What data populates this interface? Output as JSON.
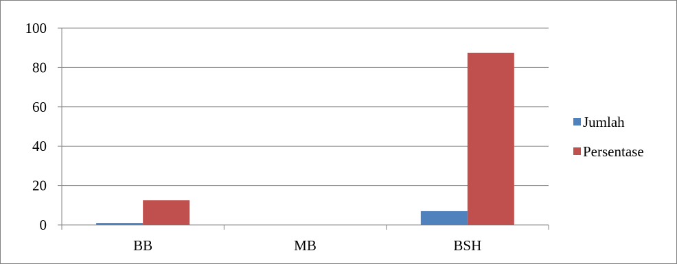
{
  "chart_data": {
    "type": "bar",
    "title": "",
    "xlabel": "",
    "ylabel": "",
    "categories": [
      "BB",
      "MB",
      "BSH"
    ],
    "series": [
      {
        "name": "Jumlah",
        "values": [
          1,
          0,
          7
        ],
        "color": "#4F81BD"
      },
      {
        "name": "Persentase",
        "values": [
          12.5,
          0,
          87.5
        ],
        "color": "#C0504D"
      }
    ],
    "ylim": [
      0,
      100
    ],
    "yticks": [
      "0",
      "20",
      "40",
      "60",
      "80",
      "100"
    ],
    "grid": true,
    "legend_position": "right"
  }
}
